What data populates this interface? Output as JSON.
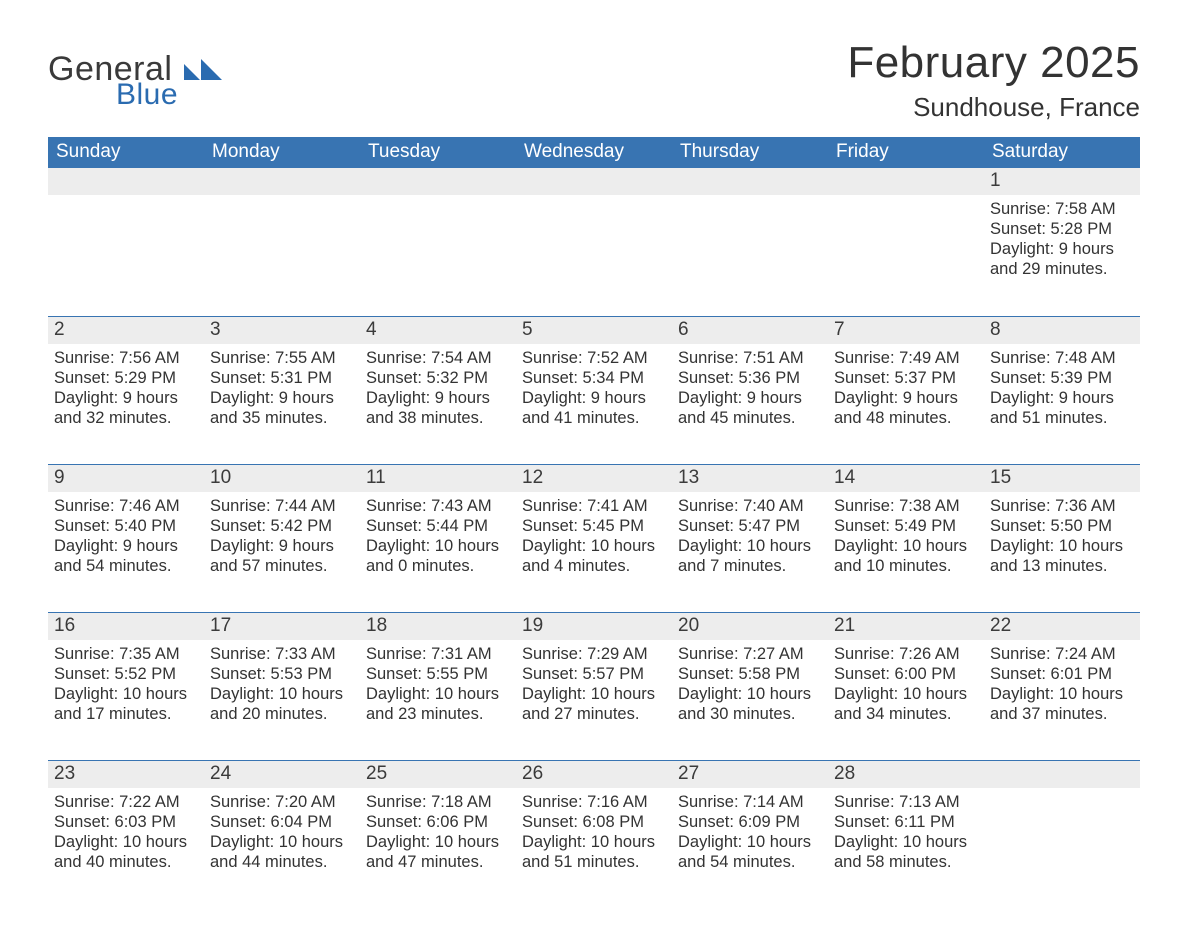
{
  "colors": {
    "header_bg": "#3874b2",
    "header_text": "#ffffff",
    "daynum_bg": "#ededed",
    "week_divider": "#3874b2",
    "body_text": "#333333",
    "logo_gray": "#3a3a3a",
    "logo_blue": "#2a6bb0",
    "page_bg": "#ffffff"
  },
  "typography": {
    "title_fontsize_pt": 33,
    "location_fontsize_pt": 20,
    "dow_fontsize_pt": 14,
    "daynum_fontsize_pt": 14,
    "body_fontsize_pt": 12
  },
  "logo": {
    "line1": "General",
    "line2": "Blue"
  },
  "title": "February 2025",
  "location": "Sundhouse, France",
  "days_of_week": [
    "Sunday",
    "Monday",
    "Tuesday",
    "Wednesday",
    "Thursday",
    "Friday",
    "Saturday"
  ],
  "weeks": [
    [
      {
        "n": "",
        "lines": []
      },
      {
        "n": "",
        "lines": []
      },
      {
        "n": "",
        "lines": []
      },
      {
        "n": "",
        "lines": []
      },
      {
        "n": "",
        "lines": []
      },
      {
        "n": "",
        "lines": []
      },
      {
        "n": "1",
        "lines": [
          "Sunrise: 7:58 AM",
          "Sunset: 5:28 PM",
          "Daylight: 9 hours and 29 minutes."
        ]
      }
    ],
    [
      {
        "n": "2",
        "lines": [
          "Sunrise: 7:56 AM",
          "Sunset: 5:29 PM",
          "Daylight: 9 hours and 32 minutes."
        ]
      },
      {
        "n": "3",
        "lines": [
          "Sunrise: 7:55 AM",
          "Sunset: 5:31 PM",
          "Daylight: 9 hours and 35 minutes."
        ]
      },
      {
        "n": "4",
        "lines": [
          "Sunrise: 7:54 AM",
          "Sunset: 5:32 PM",
          "Daylight: 9 hours and 38 minutes."
        ]
      },
      {
        "n": "5",
        "lines": [
          "Sunrise: 7:52 AM",
          "Sunset: 5:34 PM",
          "Daylight: 9 hours and 41 minutes."
        ]
      },
      {
        "n": "6",
        "lines": [
          "Sunrise: 7:51 AM",
          "Sunset: 5:36 PM",
          "Daylight: 9 hours and 45 minutes."
        ]
      },
      {
        "n": "7",
        "lines": [
          "Sunrise: 7:49 AM",
          "Sunset: 5:37 PM",
          "Daylight: 9 hours and 48 minutes."
        ]
      },
      {
        "n": "8",
        "lines": [
          "Sunrise: 7:48 AM",
          "Sunset: 5:39 PM",
          "Daylight: 9 hours and 51 minutes."
        ]
      }
    ],
    [
      {
        "n": "9",
        "lines": [
          "Sunrise: 7:46 AM",
          "Sunset: 5:40 PM",
          "Daylight: 9 hours and 54 minutes."
        ]
      },
      {
        "n": "10",
        "lines": [
          "Sunrise: 7:44 AM",
          "Sunset: 5:42 PM",
          "Daylight: 9 hours and 57 minutes."
        ]
      },
      {
        "n": "11",
        "lines": [
          "Sunrise: 7:43 AM",
          "Sunset: 5:44 PM",
          "Daylight: 10 hours and 0 minutes."
        ]
      },
      {
        "n": "12",
        "lines": [
          "Sunrise: 7:41 AM",
          "Sunset: 5:45 PM",
          "Daylight: 10 hours and 4 minutes."
        ]
      },
      {
        "n": "13",
        "lines": [
          "Sunrise: 7:40 AM",
          "Sunset: 5:47 PM",
          "Daylight: 10 hours and 7 minutes."
        ]
      },
      {
        "n": "14",
        "lines": [
          "Sunrise: 7:38 AM",
          "Sunset: 5:49 PM",
          "Daylight: 10 hours and 10 minutes."
        ]
      },
      {
        "n": "15",
        "lines": [
          "Sunrise: 7:36 AM",
          "Sunset: 5:50 PM",
          "Daylight: 10 hours and 13 minutes."
        ]
      }
    ],
    [
      {
        "n": "16",
        "lines": [
          "Sunrise: 7:35 AM",
          "Sunset: 5:52 PM",
          "Daylight: 10 hours and 17 minutes."
        ]
      },
      {
        "n": "17",
        "lines": [
          "Sunrise: 7:33 AM",
          "Sunset: 5:53 PM",
          "Daylight: 10 hours and 20 minutes."
        ]
      },
      {
        "n": "18",
        "lines": [
          "Sunrise: 7:31 AM",
          "Sunset: 5:55 PM",
          "Daylight: 10 hours and 23 minutes."
        ]
      },
      {
        "n": "19",
        "lines": [
          "Sunrise: 7:29 AM",
          "Sunset: 5:57 PM",
          "Daylight: 10 hours and 27 minutes."
        ]
      },
      {
        "n": "20",
        "lines": [
          "Sunrise: 7:27 AM",
          "Sunset: 5:58 PM",
          "Daylight: 10 hours and 30 minutes."
        ]
      },
      {
        "n": "21",
        "lines": [
          "Sunrise: 7:26 AM",
          "Sunset: 6:00 PM",
          "Daylight: 10 hours and 34 minutes."
        ]
      },
      {
        "n": "22",
        "lines": [
          "Sunrise: 7:24 AM",
          "Sunset: 6:01 PM",
          "Daylight: 10 hours and 37 minutes."
        ]
      }
    ],
    [
      {
        "n": "23",
        "lines": [
          "Sunrise: 7:22 AM",
          "Sunset: 6:03 PM",
          "Daylight: 10 hours and 40 minutes."
        ]
      },
      {
        "n": "24",
        "lines": [
          "Sunrise: 7:20 AM",
          "Sunset: 6:04 PM",
          "Daylight: 10 hours and 44 minutes."
        ]
      },
      {
        "n": "25",
        "lines": [
          "Sunrise: 7:18 AM",
          "Sunset: 6:06 PM",
          "Daylight: 10 hours and 47 minutes."
        ]
      },
      {
        "n": "26",
        "lines": [
          "Sunrise: 7:16 AM",
          "Sunset: 6:08 PM",
          "Daylight: 10 hours and 51 minutes."
        ]
      },
      {
        "n": "27",
        "lines": [
          "Sunrise: 7:14 AM",
          "Sunset: 6:09 PM",
          "Daylight: 10 hours and 54 minutes."
        ]
      },
      {
        "n": "28",
        "lines": [
          "Sunrise: 7:13 AM",
          "Sunset: 6:11 PM",
          "Daylight: 10 hours and 58 minutes."
        ]
      },
      {
        "n": "",
        "lines": []
      }
    ]
  ]
}
